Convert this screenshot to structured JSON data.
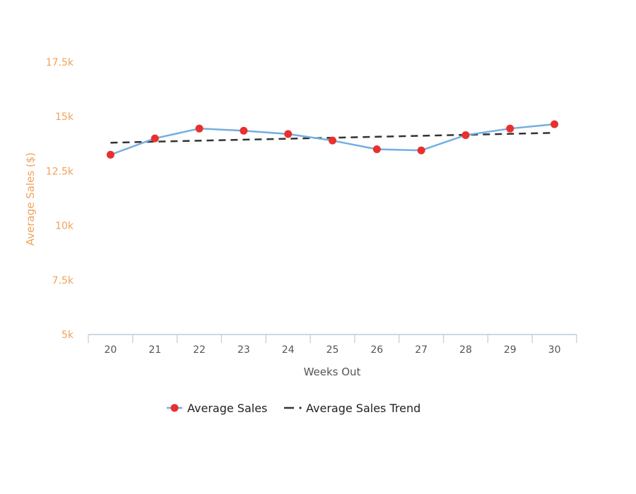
{
  "chart_data": {
    "type": "line",
    "x": [
      20,
      21,
      22,
      23,
      24,
      25,
      26,
      27,
      28,
      29,
      30
    ],
    "categories": [
      "20",
      "21",
      "22",
      "23",
      "24",
      "25",
      "26",
      "27",
      "28",
      "29",
      "30"
    ],
    "series": [
      {
        "name": "Average Sales",
        "values": [
          13250,
          14000,
          14450,
          14350,
          14200,
          13900,
          13500,
          13450,
          14150,
          14450,
          14650
        ],
        "color": "#75aee0",
        "marker_color": "#e8302f",
        "style": "solid"
      },
      {
        "name": "Average Sales Trend",
        "values": [
          13800,
          13850,
          13895,
          13940,
          13985,
          14030,
          14075,
          14120,
          14165,
          14210,
          14255
        ],
        "color": "#333333",
        "style": "dashed"
      }
    ],
    "title": "",
    "xlabel": "Weeks Out",
    "ylabel": "Average Sales ($)",
    "ylim": [
      5000,
      17500
    ],
    "yticks": [
      5000,
      7500,
      10000,
      12500,
      15000,
      17500
    ],
    "ytick_labels": [
      "5k",
      "7.5k",
      "10k",
      "12.5k",
      "15k",
      "17.5k"
    ],
    "grid": false,
    "legend_position": "bottom-center"
  }
}
